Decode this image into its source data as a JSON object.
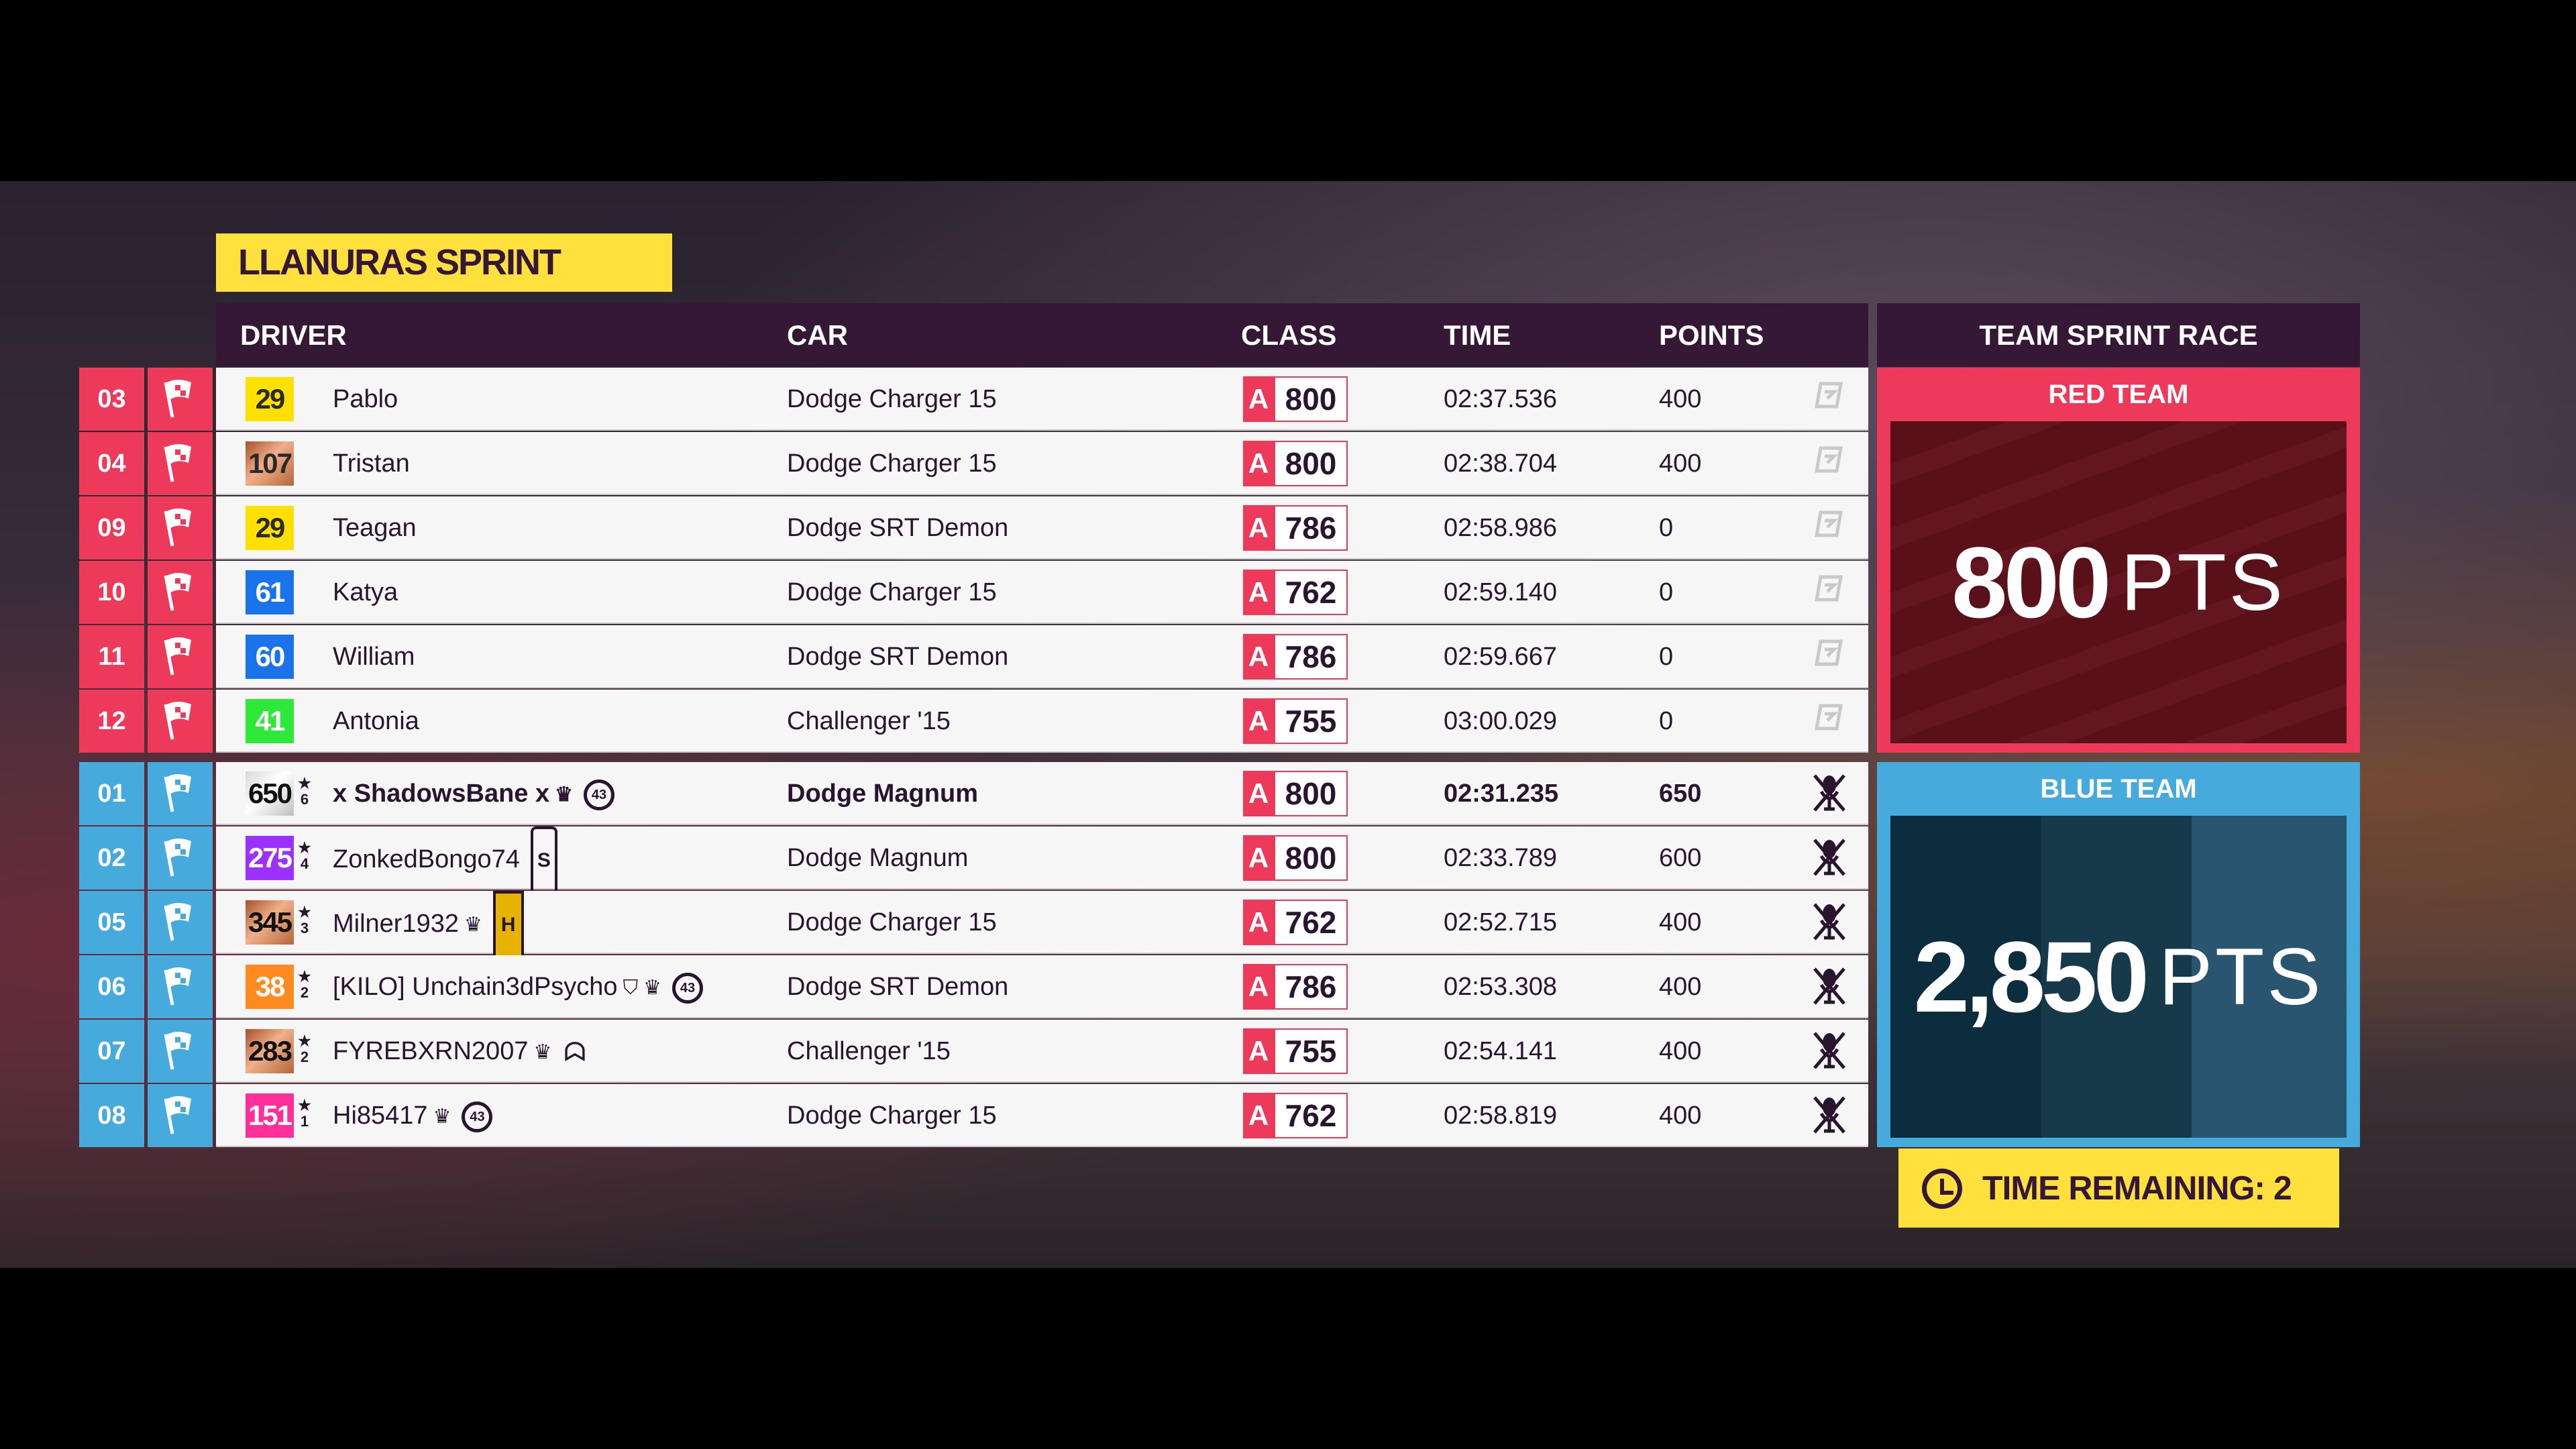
{
  "event_title": "LLANURAS SPRINT",
  "columns": {
    "driver": "DRIVER",
    "car": "CAR",
    "class": "CLASS",
    "time": "TIME",
    "points": "POINTS"
  },
  "side_header": "TEAM SPRINT RACE",
  "colors": {
    "red_team": "#ee3a5a",
    "blue_team": "#47aadd",
    "header": "#341836",
    "accent_yellow": "#ffe03d"
  },
  "red_team": {
    "label": "RED TEAM",
    "score": "800",
    "unit": "PTS",
    "rows": [
      {
        "pos": "03",
        "badge": "29",
        "badge_color": "#ffe000",
        "badge_text": "#2a2a2a",
        "name": "Pablo",
        "car": "Dodge Charger 15",
        "class": "A",
        "pi": "800",
        "time": "02:37.536",
        "points": "400",
        "icon": "drivatar-icon"
      },
      {
        "pos": "04",
        "badge": "107",
        "badge_color": "bronze",
        "badge_text": "#2a2a2a",
        "name": "Tristan",
        "car": "Dodge Charger 15",
        "class": "A",
        "pi": "800",
        "time": "02:38.704",
        "points": "400",
        "icon": "drivatar-icon"
      },
      {
        "pos": "09",
        "badge": "29",
        "badge_color": "#ffe000",
        "badge_text": "#2a2a2a",
        "name": "Teagan",
        "car": "Dodge SRT Demon",
        "class": "A",
        "pi": "786",
        "time": "02:58.986",
        "points": "0",
        "icon": "drivatar-icon"
      },
      {
        "pos": "10",
        "badge": "61",
        "badge_color": "#1a73e8",
        "badge_text": "#fff",
        "name": "Katya",
        "car": "Dodge Charger 15",
        "class": "A",
        "pi": "762",
        "time": "02:59.140",
        "points": "0",
        "icon": "drivatar-icon"
      },
      {
        "pos": "11",
        "badge": "60",
        "badge_color": "#1a73e8",
        "badge_text": "#fff",
        "name": "William",
        "car": "Dodge SRT Demon",
        "class": "A",
        "pi": "786",
        "time": "02:59.667",
        "points": "0",
        "icon": "drivatar-icon"
      },
      {
        "pos": "12",
        "badge": "41",
        "badge_color": "#2ee83a",
        "badge_text": "#fff",
        "name": "Antonia",
        "car": "Challenger '15",
        "class": "A",
        "pi": "755",
        "time": "03:00.029",
        "points": "0",
        "icon": "drivatar-icon"
      }
    ]
  },
  "blue_team": {
    "label": "BLUE TEAM",
    "score": "2,850",
    "unit": "PTS",
    "rows": [
      {
        "pos": "01",
        "badge": "650",
        "badge_color": "silver",
        "badge_text": "#111",
        "level": "6",
        "name": "x ShadowsBane x",
        "tags": [
          "crown",
          "43"
        ],
        "car": "Dodge Magnum",
        "class": "A",
        "pi": "800",
        "time": "02:31.235",
        "points": "650",
        "icon": "mic-muted-icon",
        "bold": true
      },
      {
        "pos": "02",
        "badge": "275",
        "badge_color": "#9b30ff",
        "badge_text": "#fff",
        "level": "4",
        "name": "ZonkedBongo74",
        "tags": [
          "S"
        ],
        "car": "Dodge Magnum",
        "class": "A",
        "pi": "800",
        "time": "02:33.789",
        "points": "600",
        "icon": "mic-muted-icon"
      },
      {
        "pos": "05",
        "badge": "345",
        "badge_color": "bronze",
        "badge_text": "#111",
        "level": "3",
        "name": "Milner1932",
        "tags": [
          "crown",
          "H"
        ],
        "car": "Dodge Charger 15",
        "class": "A",
        "pi": "762",
        "time": "02:52.715",
        "points": "400",
        "icon": "mic-muted-icon"
      },
      {
        "pos": "06",
        "badge": "38",
        "badge_color": "#ff8a1f",
        "badge_text": "#fff",
        "level": "2",
        "name": "[KILO] Unchain3dPsycho",
        "tags": [
          "shield",
          "crown",
          "43"
        ],
        "car": "Dodge SRT Demon",
        "class": "A",
        "pi": "786",
        "time": "02:53.308",
        "points": "400",
        "icon": "mic-muted-icon"
      },
      {
        "pos": "07",
        "badge": "283",
        "badge_color": "bronze",
        "badge_text": "#111",
        "level": "2",
        "name": "FYREBXRN2007",
        "tags": [
          "crown",
          "ghost"
        ],
        "car": "Challenger '15",
        "class": "A",
        "pi": "755",
        "time": "02:54.141",
        "points": "400",
        "icon": "mic-muted-icon"
      },
      {
        "pos": "08",
        "badge": "151",
        "badge_color": "#ff2f9a",
        "badge_text": "#fff",
        "level": "1",
        "name": "Hi85417",
        "tags": [
          "crown",
          "43"
        ],
        "car": "Dodge Charger 15",
        "class": "A",
        "pi": "762",
        "time": "02:58.819",
        "points": "400",
        "icon": "mic-muted-icon"
      }
    ]
  },
  "time_remaining": "TIME REMAINING: 2"
}
